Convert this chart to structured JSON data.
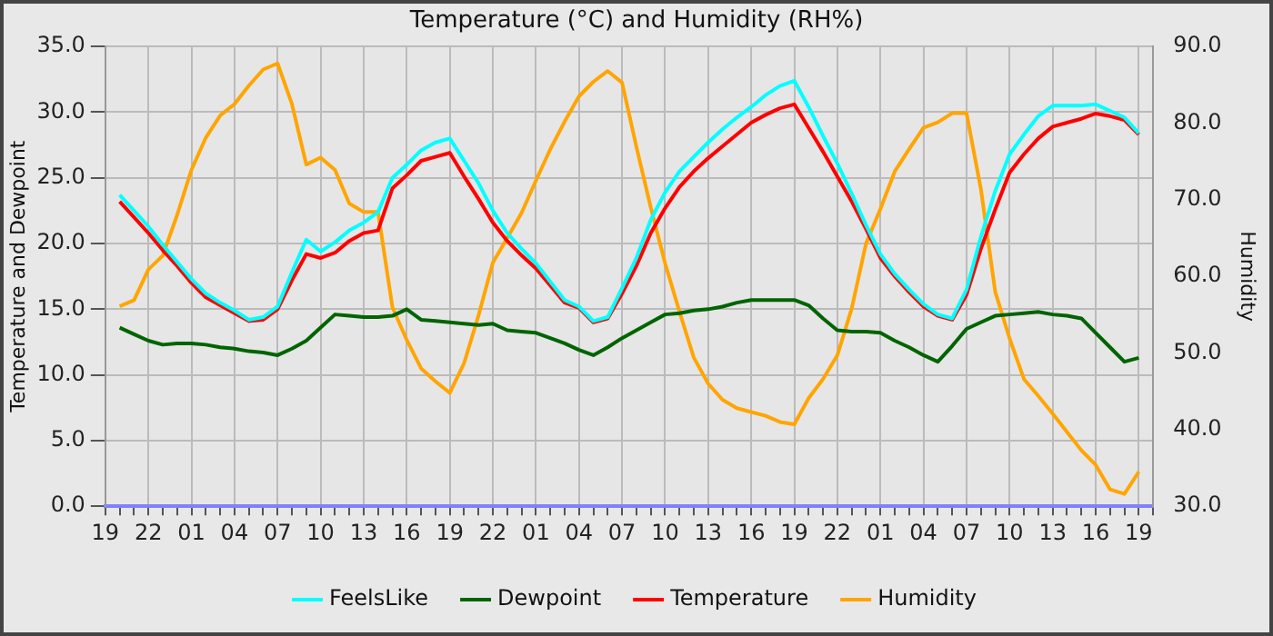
{
  "chart_data": {
    "type": "line",
    "title": "Temperature (°C) and Humidity (RH%)",
    "ylabel": "Temperature and Dewpoint",
    "y2label": "Humidity",
    "grid": true,
    "legend": "bottom",
    "marker": "none",
    "line_style": "solid",
    "categories": [
      "19",
      null,
      null,
      "22",
      null,
      null,
      "01",
      null,
      null,
      "04",
      null,
      null,
      "07",
      null,
      null,
      "10",
      null,
      null,
      "13",
      null,
      null,
      "16",
      null,
      null,
      "19",
      null,
      null,
      "22",
      null,
      null,
      "01",
      null,
      null,
      "04",
      null,
      null,
      "07",
      null,
      null,
      "10",
      null,
      null,
      "13",
      null,
      null,
      "16",
      null,
      null,
      "19",
      null,
      null,
      "22",
      null,
      null,
      "01",
      null,
      null,
      "04",
      null,
      null,
      "07",
      null,
      null,
      "10",
      null,
      null,
      "13",
      null,
      null,
      "16",
      null,
      null,
      "19",
      null
    ],
    "ylim": [
      0,
      35
    ],
    "yticks": [
      {
        "value": 0,
        "label": "0.0"
      },
      {
        "value": 5,
        "label": "5.0"
      },
      {
        "value": 10,
        "label": "10.0"
      },
      {
        "value": 15,
        "label": "15.0"
      },
      {
        "value": 20,
        "label": "20.0"
      },
      {
        "value": 25,
        "label": "25.0"
      },
      {
        "value": 30,
        "label": "30.0"
      },
      {
        "value": 35,
        "label": "35.0"
      }
    ],
    "y2lim": [
      30,
      90
    ],
    "y2ticks": [
      {
        "value": 30,
        "label": "30.0"
      },
      {
        "value": 40,
        "label": "40.0"
      },
      {
        "value": 50,
        "label": "50.0"
      },
      {
        "value": 60,
        "label": "60.0"
      },
      {
        "value": 70,
        "label": "70.0"
      },
      {
        "value": 80,
        "label": "80.0"
      },
      {
        "value": 90,
        "label": "90.0"
      }
    ],
    "series": [
      {
        "name": "FeelsLike",
        "color": "#00ffff",
        "values": [
          null,
          23.7,
          22.5,
          21.3,
          19.9,
          18.6,
          17.3,
          16.2,
          15.5,
          14.9,
          14.2,
          14.4,
          15.2,
          17.8,
          20.3,
          19.4,
          20.1,
          21.0,
          21.6,
          22.4,
          25.0,
          26.0,
          27.1,
          27.7,
          28.0,
          26.3,
          24.6,
          22.5,
          20.8,
          19.6,
          18.5,
          17.1,
          15.7,
          15.2,
          14.1,
          14.4,
          16.6,
          18.9,
          21.8,
          23.9,
          25.5,
          26.6,
          27.7,
          28.7,
          29.6,
          30.4,
          31.3,
          32.0,
          32.4,
          30.4,
          28.2,
          26.1,
          23.8,
          21.4,
          19.2,
          17.7,
          16.5,
          15.4,
          14.6,
          14.3,
          16.5,
          20.5,
          24.0,
          26.8,
          28.3,
          29.7,
          30.5,
          30.5,
          30.5,
          30.6,
          30.1,
          29.6,
          28.4,
          null
        ]
      },
      {
        "name": "Dewpoint",
        "color": "#006400",
        "values": [
          null,
          13.6,
          13.1,
          12.6,
          12.3,
          12.4,
          12.4,
          12.3,
          12.1,
          12.0,
          11.8,
          11.7,
          11.5,
          12.0,
          12.6,
          13.6,
          14.6,
          14.5,
          14.4,
          14.4,
          14.5,
          15.0,
          14.2,
          14.1,
          14.0,
          13.9,
          13.8,
          13.9,
          13.4,
          13.3,
          13.2,
          12.8,
          12.4,
          11.9,
          11.5,
          12.1,
          12.8,
          13.4,
          14.0,
          14.6,
          14.7,
          14.9,
          15.0,
          15.2,
          15.5,
          15.7,
          15.7,
          15.7,
          15.7,
          15.3,
          14.3,
          13.4,
          13.3,
          13.3,
          13.2,
          12.6,
          12.1,
          11.5,
          11.0,
          12.2,
          13.5,
          14.0,
          14.5,
          14.6,
          14.7,
          14.8,
          14.6,
          14.5,
          14.3,
          13.2,
          12.1,
          11.0,
          11.3,
          null
        ]
      },
      {
        "name": "Temperature",
        "color": "#ff0000",
        "values": [
          null,
          23.2,
          22.0,
          20.8,
          19.5,
          18.3,
          17.0,
          15.9,
          15.3,
          14.7,
          14.1,
          14.2,
          15.0,
          17.2,
          19.2,
          18.9,
          19.3,
          20.2,
          20.8,
          21.0,
          24.2,
          25.2,
          26.3,
          26.6,
          26.9,
          25.1,
          23.4,
          21.6,
          20.2,
          19.1,
          18.1,
          16.8,
          15.5,
          15.1,
          14.0,
          14.3,
          16.2,
          18.3,
          20.8,
          22.7,
          24.3,
          25.5,
          26.5,
          27.4,
          28.3,
          29.2,
          29.8,
          30.3,
          30.6,
          28.8,
          27.0,
          25.1,
          23.2,
          21.1,
          18.9,
          17.5,
          16.3,
          15.2,
          14.5,
          14.2,
          16.1,
          19.6,
          22.6,
          25.4,
          26.8,
          28.0,
          28.9,
          29.2,
          29.5,
          29.9,
          29.7,
          29.4,
          28.3,
          null
        ]
      },
      {
        "name": "Humidity",
        "color": "#ffa500",
        "axis": "y2",
        "values": [
          null,
          56.1,
          56.9,
          60.9,
          62.7,
          68.0,
          73.9,
          78.1,
          81.0,
          82.5,
          84.9,
          87.0,
          87.8,
          82.5,
          74.6,
          75.5,
          73.9,
          69.5,
          68.4,
          68.4,
          56.0,
          51.7,
          48.0,
          46.3,
          44.8,
          48.7,
          54.9,
          61.8,
          65.0,
          68.3,
          72.5,
          76.6,
          80.2,
          83.5,
          85.4,
          86.8,
          85.3,
          76.9,
          69.0,
          61.7,
          55.4,
          49.4,
          46.0,
          43.9,
          42.8,
          42.3,
          41.8,
          41.0,
          40.7,
          44.1,
          46.6,
          49.7,
          55.8,
          64.3,
          68.8,
          73.7,
          76.6,
          79.4,
          80.1,
          81.3,
          81.3,
          71.4,
          58.0,
          51.9,
          46.6,
          44.4,
          42.1,
          39.7,
          37.3,
          35.4,
          32.2,
          31.6,
          34.5,
          null
        ]
      }
    ]
  }
}
